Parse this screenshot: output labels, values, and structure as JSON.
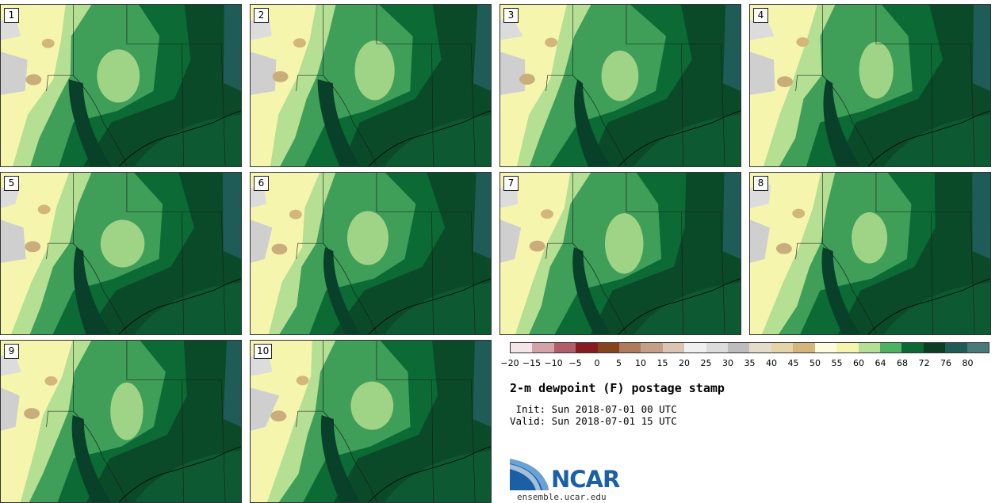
{
  "panels": [
    {
      "label": "1"
    },
    {
      "label": "2"
    },
    {
      "label": "3"
    },
    {
      "label": "4"
    },
    {
      "label": "5"
    },
    {
      "label": "6"
    },
    {
      "label": "7"
    },
    {
      "label": "8"
    },
    {
      "label": "9"
    },
    {
      "label": "10"
    }
  ],
  "colorbar": {
    "colors": [
      "#f5e5e8",
      "#d4a3a9",
      "#b15e68",
      "#8a1a22",
      "#87441c",
      "#b07a5c",
      "#c59e87",
      "#dcc4b4",
      "#f0f0f0",
      "#dcdcdc",
      "#bdbdbd",
      "#e2dcc8",
      "#e4d4a8",
      "#d3b77a",
      "#fdfbe2",
      "#f6f5ae",
      "#b5df92",
      "#4db263",
      "#0a6a33",
      "#0a3f22",
      "#1f5c58",
      "#497a7a"
    ],
    "ticks": [
      "−20",
      "−15",
      "−10",
      "−5",
      "0",
      "5",
      "10",
      "15",
      "20",
      "25",
      "30",
      "35",
      "40",
      "45",
      "50",
      "55",
      "60",
      "64",
      "68",
      "72",
      "76",
      "80"
    ]
  },
  "title": "2-m dewpoint (F) postage stamp",
  "init": " Init: Sun 2018-07-01 00 UTC",
  "valid": "Valid: Sun 2018-07-01 15 UTC",
  "logo_text": "NCAR",
  "website": "ensemble.ucar.edu"
}
